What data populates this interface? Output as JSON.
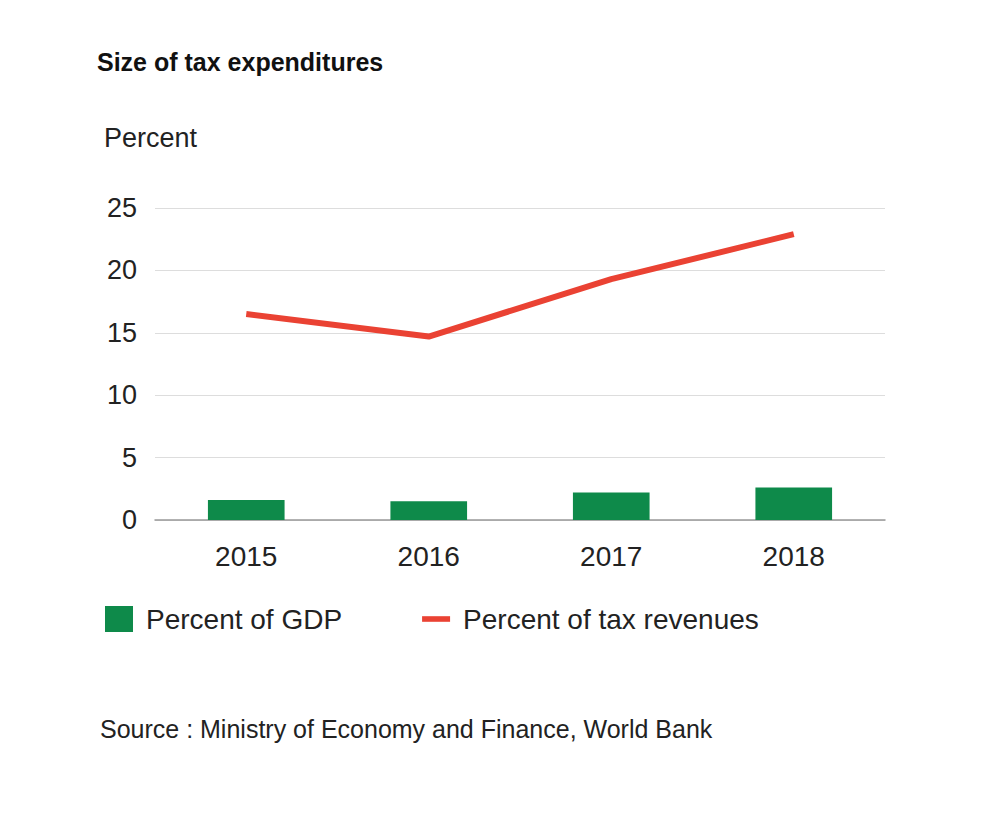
{
  "chart_data": {
    "type": "bar",
    "title": "Size of tax expenditures",
    "y_label": "Percent",
    "annotations": [
      "Source : Ministry of Economy and Finance, World Bank"
    ],
    "categories": [
      "2015",
      "2016",
      "2017",
      "2018"
    ],
    "series": [
      {
        "name": "Percent of GDP",
        "type": "bar",
        "color": "#0e8a4a",
        "values": [
          1.6,
          1.5,
          2.2,
          2.6
        ]
      },
      {
        "name": "Percent of tax revenues",
        "type": "line",
        "color": "#ea4233",
        "values": [
          16.5,
          14.7,
          19.3,
          22.9
        ]
      }
    ],
    "ylim": [
      0,
      25
    ],
    "yticks": [
      0,
      5,
      10,
      15,
      20,
      25
    ],
    "grid": true,
    "legend": "bottom"
  }
}
